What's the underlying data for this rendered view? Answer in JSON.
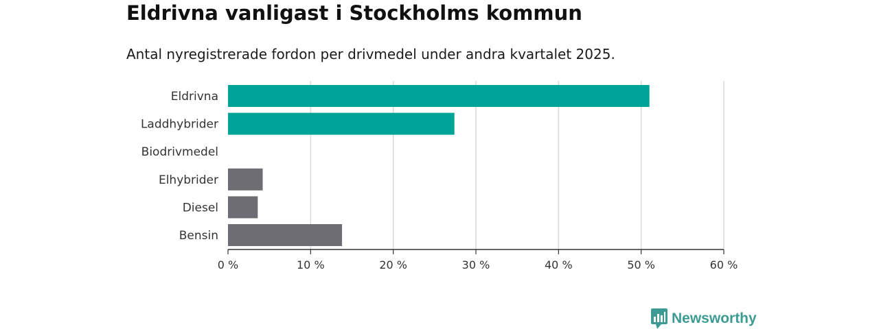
{
  "title": "Eldrivna vanligast i Stockholms kommun",
  "subtitle": "Antal nyregistrerade fordon per drivmedel under andra kvartalet 2025.",
  "brand": {
    "name": "Newsworthy",
    "color": "#3d9b94"
  },
  "colors": {
    "highlight": "#00a398",
    "default": "#6e6d73",
    "grid": "#d9d9d9",
    "axis": "#333333"
  },
  "chart_data": {
    "type": "bar",
    "orientation": "horizontal",
    "categories": [
      "Eldrivna",
      "Laddhybrider",
      "Biodrivmedel",
      "Elhybrider",
      "Diesel",
      "Bensin"
    ],
    "values": [
      51.0,
      27.4,
      0,
      4.2,
      3.6,
      13.8
    ],
    "highlighted": [
      true,
      true,
      false,
      false,
      false,
      false
    ],
    "xlim": [
      0,
      60
    ],
    "xticks": [
      0,
      10,
      20,
      30,
      40,
      50,
      60
    ],
    "xtick_labels": [
      "0 %",
      "10 %",
      "20 %",
      "30 %",
      "40 %",
      "50 %",
      "60 %"
    ],
    "grid": true
  }
}
